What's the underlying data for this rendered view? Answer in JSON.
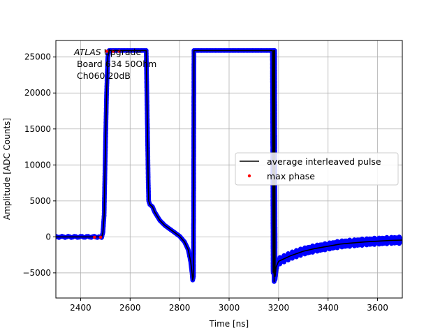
{
  "chart_data": {
    "type": "scatter",
    "title": "",
    "xlabel": "Time [ns]",
    "ylabel": "Amplitude [ADC Counts]",
    "xlim": [
      2300,
      3700
    ],
    "ylim": [
      -8500,
      27300
    ],
    "x_ticks": [
      2400,
      2600,
      2800,
      3000,
      3200,
      3400,
      3600
    ],
    "y_ticks": [
      -5000,
      0,
      5000,
      10000,
      15000,
      20000,
      25000
    ],
    "grid": true,
    "legend_position": "center-right",
    "annotation": {
      "italic": "ATLAS",
      "italic_suffix": " Upgrade",
      "lines": [
        " Board 634 50Ohm",
        " Ch060 20dB"
      ]
    },
    "legend": [
      {
        "label": "average interleaved pulse",
        "marker": "line",
        "color": "#000000"
      },
      {
        "label": "max phase",
        "marker": "dot",
        "color": "#ff0000"
      }
    ],
    "series": [
      {
        "name": "average interleaved pulse",
        "kind": "line",
        "color": "#000000",
        "points": [
          [
            2300,
            0
          ],
          [
            2480,
            0
          ],
          [
            2485,
            -100
          ],
          [
            2490,
            600
          ],
          [
            2495,
            3000
          ],
          [
            2500,
            12000
          ],
          [
            2505,
            20000
          ],
          [
            2510,
            25000
          ],
          [
            2515,
            25900
          ],
          [
            2665,
            25900
          ],
          [
            2670,
            15000
          ],
          [
            2673,
            8000
          ],
          [
            2675,
            5000
          ],
          [
            2680,
            4500
          ],
          [
            2690,
            4200
          ],
          [
            2700,
            3400
          ],
          [
            2720,
            2300
          ],
          [
            2740,
            1600
          ],
          [
            2760,
            1100
          ],
          [
            2780,
            600
          ],
          [
            2800,
            100
          ],
          [
            2820,
            -700
          ],
          [
            2835,
            -1800
          ],
          [
            2845,
            -3500
          ],
          [
            2850,
            -5000
          ],
          [
            2853,
            -6000
          ],
          [
            2856,
            -5500
          ],
          [
            2858,
            25900
          ],
          [
            3175,
            25900
          ],
          [
            3178,
            -5000
          ],
          [
            3180,
            25900
          ],
          [
            3182,
            -6200
          ],
          [
            3184,
            25900
          ],
          [
            3186,
            -5500
          ],
          [
            3190,
            -4200
          ],
          [
            3200,
            -3400
          ],
          [
            3250,
            -2600
          ],
          [
            3300,
            -2000
          ],
          [
            3350,
            -1600
          ],
          [
            3400,
            -1300
          ],
          [
            3450,
            -1000
          ],
          [
            3500,
            -850
          ],
          [
            3550,
            -700
          ],
          [
            3600,
            -600
          ],
          [
            3650,
            -500
          ],
          [
            3700,
            -450
          ]
        ]
      },
      {
        "name": "samples",
        "kind": "scatter",
        "color": "#0000ff",
        "note_dense": true
      },
      {
        "name": "max phase",
        "kind": "scatter",
        "color": "#ff0000",
        "points": [
          [
            2456,
            -50
          ],
          [
            2481,
            -50
          ],
          [
            2506,
            25800
          ],
          [
            2531,
            25800
          ],
          [
            2556,
            25800
          ]
        ]
      }
    ]
  }
}
